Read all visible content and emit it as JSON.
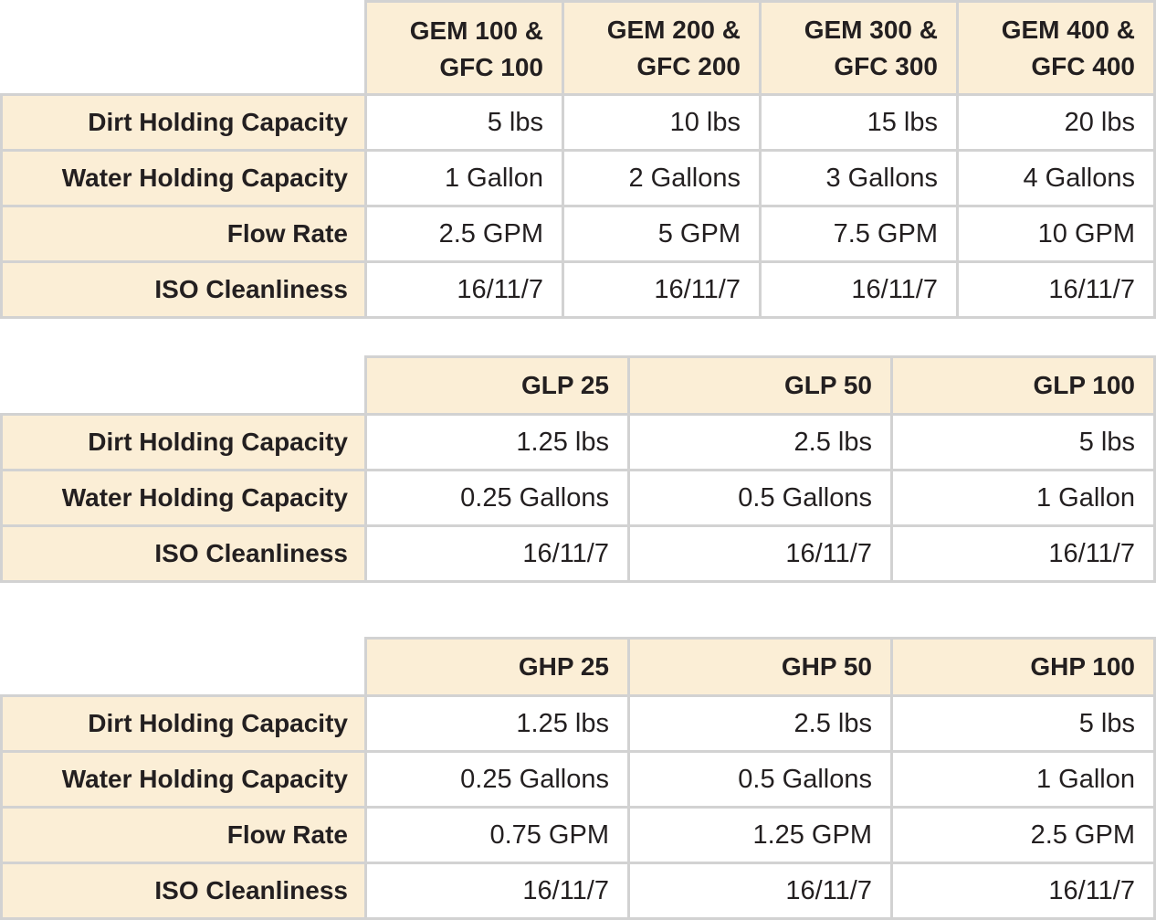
{
  "tables": [
    {
      "headers": [
        "GEM 100 &\nGFC 100",
        "GEM 200 &\nGFC 200",
        "GEM 300 &\nGFC 300",
        "GEM 400 &\nGFC 400"
      ],
      "rows": [
        {
          "label": "Dirt Holding Capacity",
          "values": [
            "5 lbs",
            "10 lbs",
            "15 lbs",
            "20 lbs"
          ]
        },
        {
          "label": "Water Holding Capacity",
          "values": [
            "1 Gallon",
            "2 Gallons",
            "3 Gallons",
            "4 Gallons"
          ]
        },
        {
          "label": "Flow Rate",
          "values": [
            "2.5 GPM",
            "5 GPM",
            "7.5 GPM",
            "10 GPM"
          ]
        },
        {
          "label": "ISO Cleanliness",
          "values": [
            "16/11/7",
            "16/11/7",
            "16/11/7",
            "16/11/7"
          ]
        }
      ]
    },
    {
      "headers": [
        "GLP 25",
        "GLP 50",
        "GLP 100"
      ],
      "rows": [
        {
          "label": "Dirt Holding Capacity",
          "values": [
            "1.25 lbs",
            "2.5 lbs",
            "5 lbs"
          ]
        },
        {
          "label": "Water Holding Capacity",
          "values": [
            "0.25 Gallons",
            "0.5 Gallons",
            "1 Gallon"
          ]
        },
        {
          "label": "ISO Cleanliness",
          "values": [
            "16/11/7",
            "16/11/7",
            "16/11/7"
          ]
        }
      ]
    },
    {
      "headers": [
        "GHP 25",
        "GHP 50",
        "GHP 100"
      ],
      "rows": [
        {
          "label": "Dirt Holding Capacity",
          "values": [
            "1.25 lbs",
            "2.5 lbs",
            "5 lbs"
          ]
        },
        {
          "label": "Water Holding Capacity",
          "values": [
            "0.25 Gallons",
            "0.5 Gallons",
            "1 Gallon"
          ]
        },
        {
          "label": "Flow Rate",
          "values": [
            "0.75 GPM",
            "1.25 GPM",
            "2.5 GPM"
          ]
        },
        {
          "label": "ISO Cleanliness",
          "values": [
            "16/11/7",
            "16/11/7",
            "16/11/7"
          ]
        }
      ]
    }
  ]
}
